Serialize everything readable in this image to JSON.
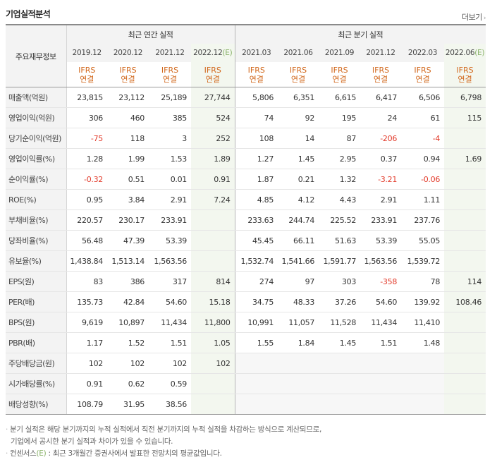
{
  "title": "기업실적분석",
  "more_label": "더보기",
  "header": {
    "label_col": "주요재무정보",
    "annual_group": "최근 연간 실적",
    "quarter_group": "최근 분기 실적",
    "annual_periods": [
      "2019.12",
      "2020.12",
      "2021.12",
      "2022.12"
    ],
    "quarter_periods": [
      "2021.03",
      "2021.06",
      "2021.09",
      "2021.12",
      "2022.03",
      "2022.06"
    ],
    "estimate_mark": "(E)",
    "ifrs": "IFRS",
    "consolidated": "연결"
  },
  "rows": [
    {
      "label": "매출액(억원)",
      "values": [
        "23,815",
        "23,112",
        "25,189",
        "27,744",
        "5,806",
        "6,351",
        "6,615",
        "6,417",
        "6,506",
        "6,798"
      ]
    },
    {
      "label": "영업이익(억원)",
      "values": [
        "306",
        "460",
        "385",
        "524",
        "74",
        "92",
        "195",
        "24",
        "61",
        "115"
      ]
    },
    {
      "label": "당기순이익(억원)",
      "values": [
        "-75",
        "118",
        "3",
        "252",
        "108",
        "14",
        "87",
        "-206",
        "-4",
        ""
      ]
    },
    {
      "label": "영업이익률(%)",
      "values": [
        "1.28",
        "1.99",
        "1.53",
        "1.89",
        "1.27",
        "1.45",
        "2.95",
        "0.37",
        "0.94",
        "1.69"
      ]
    },
    {
      "label": "순이익률(%)",
      "values": [
        "-0.32",
        "0.51",
        "0.01",
        "0.91",
        "1.87",
        "0.21",
        "1.32",
        "-3.21",
        "-0.06",
        ""
      ]
    },
    {
      "label": "ROE(%)",
      "values": [
        "0.95",
        "3.84",
        "2.91",
        "7.24",
        "4.85",
        "4.12",
        "4.43",
        "2.91",
        "1.11",
        ""
      ]
    },
    {
      "label": "부채비율(%)",
      "values": [
        "220.57",
        "230.17",
        "233.91",
        "",
        "233.63",
        "244.74",
        "225.52",
        "233.91",
        "237.76",
        ""
      ]
    },
    {
      "label": "당좌비율(%)",
      "values": [
        "56.48",
        "47.39",
        "53.39",
        "",
        "45.45",
        "66.11",
        "51.63",
        "53.39",
        "55.05",
        ""
      ]
    },
    {
      "label": "유보율(%)",
      "values": [
        "1,438.84",
        "1,513.14",
        "1,563.56",
        "",
        "1,532.74",
        "1,541.66",
        "1,591.77",
        "1,563.56",
        "1,539.72",
        ""
      ]
    },
    {
      "label": "EPS(원)",
      "values": [
        "83",
        "386",
        "317",
        "814",
        "274",
        "97",
        "303",
        "-358",
        "78",
        "114"
      ]
    },
    {
      "label": "PER(배)",
      "values": [
        "135.73",
        "42.84",
        "54.60",
        "15.18",
        "34.75",
        "48.33",
        "37.26",
        "54.60",
        "139.92",
        "108.46"
      ]
    },
    {
      "label": "BPS(원)",
      "values": [
        "9,619",
        "10,897",
        "11,434",
        "11,800",
        "10,991",
        "11,057",
        "11,528",
        "11,434",
        "11,410",
        ""
      ]
    },
    {
      "label": "PBR(배)",
      "values": [
        "1.17",
        "1.52",
        "1.51",
        "1.05",
        "1.55",
        "1.84",
        "1.45",
        "1.51",
        "1.48",
        ""
      ]
    },
    {
      "label": "주당배당금(원)",
      "values": [
        "102",
        "102",
        "102",
        "102",
        "",
        "",
        "",
        "",
        "",
        ""
      ]
    },
    {
      "label": "시가배당률(%)",
      "values": [
        "0.91",
        "0.62",
        "0.59",
        "",
        "",
        "",
        "",
        "",
        "",
        ""
      ]
    },
    {
      "label": "배당성향(%)",
      "values": [
        "108.79",
        "31.95",
        "38.56",
        "",
        "",
        "",
        "",
        "",
        "",
        ""
      ]
    }
  ],
  "notes": {
    "line1": "분기 실적은 해당 분기까지의 누적 실적에서 직전 분기까지의 누적 실적을 차감하는 방식으로 계산되므로,",
    "line2": "기업에서 공시한 분기 실적과 차이가 있을 수 있습니다.",
    "line3_prefix": "컨센서스",
    "line3_mark": "(E)",
    "line3_suffix": ": 최근 3개월간 증권사에서 발표한 전망치의 평균값입니다."
  }
}
